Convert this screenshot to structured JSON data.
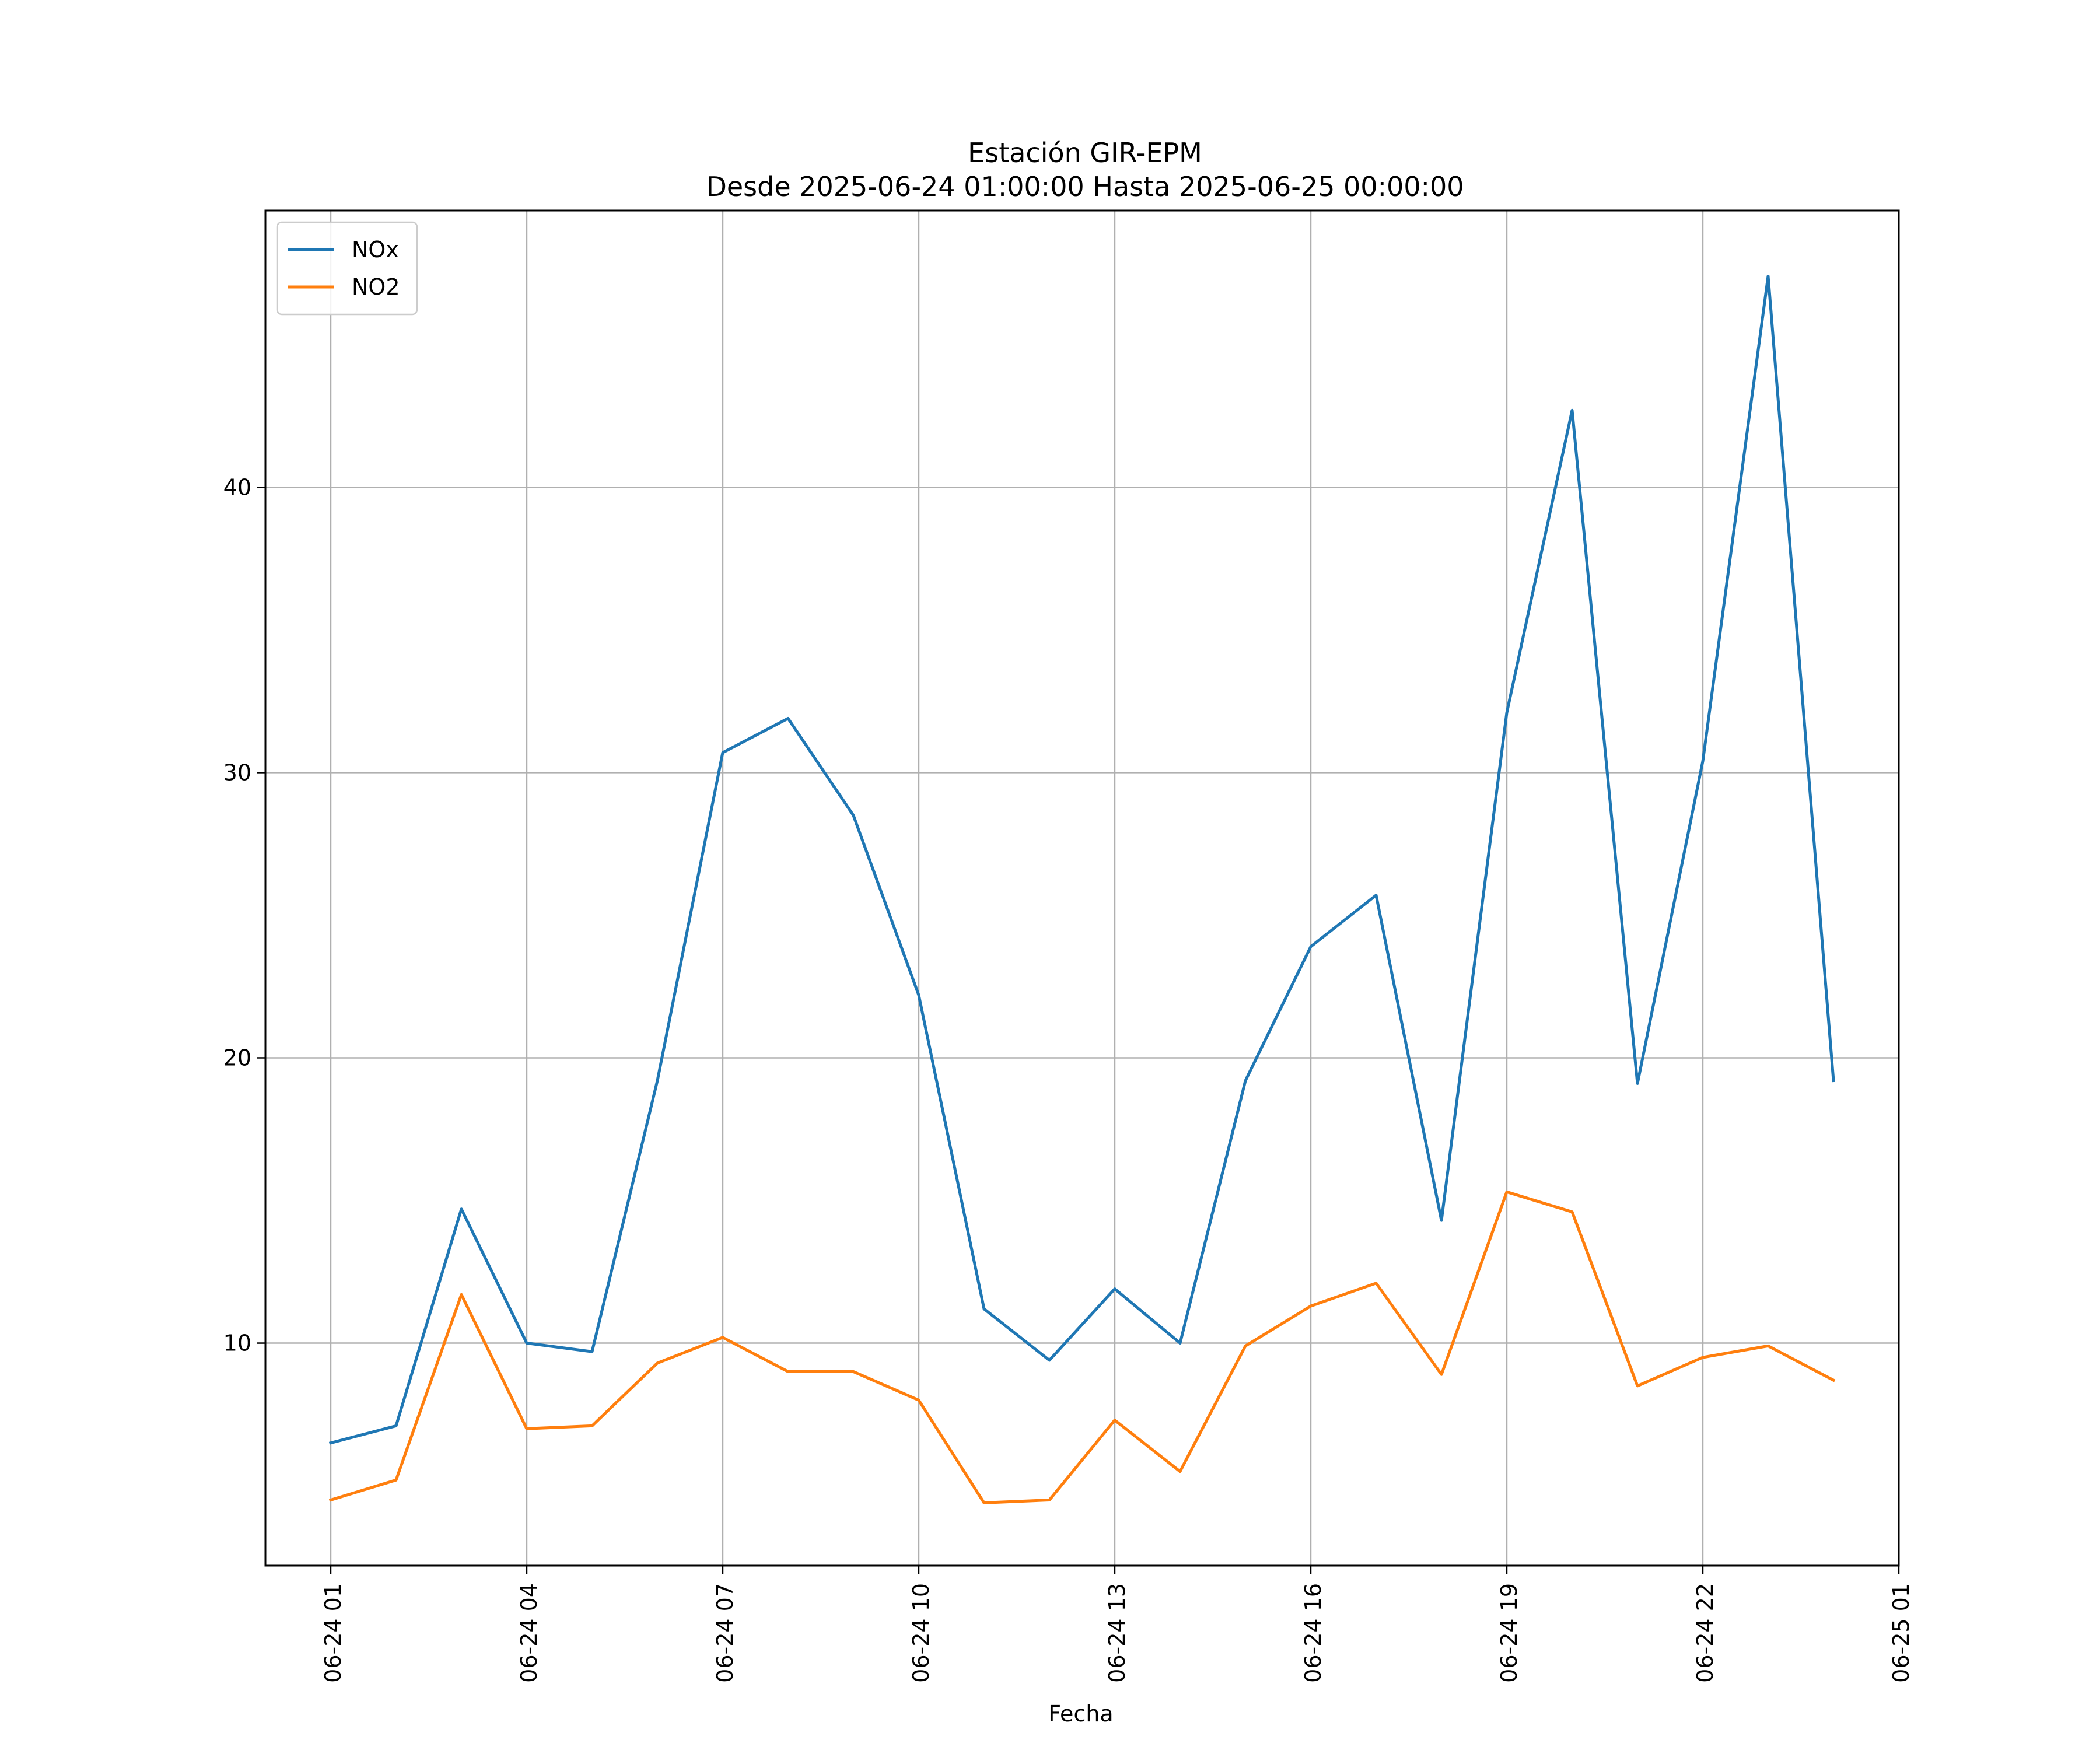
{
  "chart_data": {
    "type": "line",
    "title": "Estación GIR-EPM",
    "subtitle": "Desde 2025-06-24 01:00:00 Hasta 2025-06-25 00:00:00",
    "xlabel": "Fecha",
    "ylabel": "",
    "x": [
      "2025-06-24 01:00",
      "2025-06-24 02:00",
      "2025-06-24 03:00",
      "2025-06-24 04:00",
      "2025-06-24 05:00",
      "2025-06-24 06:00",
      "2025-06-24 07:00",
      "2025-06-24 08:00",
      "2025-06-24 09:00",
      "2025-06-24 10:00",
      "2025-06-24 11:00",
      "2025-06-24 12:00",
      "2025-06-24 13:00",
      "2025-06-24 14:00",
      "2025-06-24 15:00",
      "2025-06-24 16:00",
      "2025-06-24 17:00",
      "2025-06-24 18:00",
      "2025-06-24 19:00",
      "2025-06-24 20:00",
      "2025-06-24 21:00",
      "2025-06-24 22:00",
      "2025-06-24 23:00",
      "2025-06-25 00:00"
    ],
    "x_ticks": [
      "06-24 01",
      "06-24 04",
      "06-24 07",
      "06-24 10",
      "06-24 13",
      "06-24 16",
      "06-24 19",
      "06-24 22",
      "06-25 01"
    ],
    "y_ticks": [
      10,
      20,
      30,
      40
    ],
    "ylim": [
      2.2,
      49.7
    ],
    "xlim": [
      "2025-06-24 00:00",
      "2025-06-25 01:00"
    ],
    "grid": true,
    "legend": "top-left",
    "series": [
      {
        "name": "NOx",
        "color": "#1f77b4",
        "values": [
          6.5,
          7.1,
          14.7,
          10.0,
          9.7,
          19.2,
          30.7,
          31.9,
          28.5,
          22.2,
          11.2,
          9.4,
          11.9,
          10.0,
          19.2,
          23.9,
          25.7,
          14.3,
          32.1,
          42.7,
          19.1,
          30.4,
          47.4,
          19.2
        ]
      },
      {
        "name": "NO2",
        "color": "#ff7f0e",
        "values": [
          4.5,
          5.2,
          11.7,
          7.0,
          7.1,
          9.3,
          10.2,
          9.0,
          9.0,
          8.0,
          4.4,
          4.5,
          7.3,
          5.5,
          9.9,
          11.3,
          12.1,
          8.9,
          15.3,
          14.6,
          8.5,
          9.5,
          9.9,
          8.7
        ]
      }
    ]
  }
}
